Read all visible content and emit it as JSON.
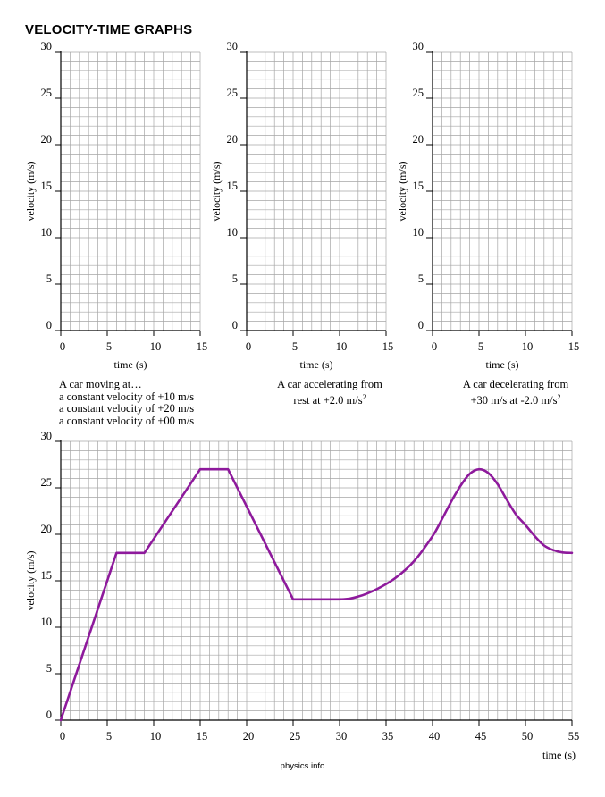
{
  "page_title": "VELOCITY-TIME GRAPHS",
  "footer": "physics.info",
  "captions": {
    "graph1_lines": [
      "A car moving at…",
      "a constant velocity of +10 m/s",
      "a constant velocity of +20 m/s",
      "a constant velocity of +00 m/s"
    ],
    "graph2_lines": [
      "A car  accelerating from",
      "rest at +2.0 m/s"
    ],
    "graph2_sup": "2",
    "graph3_lines": [
      "A car decelerating from",
      "+30 m/s at -2.0 m/s"
    ],
    "graph3_sup": "2"
  },
  "colors": {
    "grid": "#a6a6a6",
    "axis": "#000000",
    "curve": "#8e1a9c"
  },
  "chart_data": [
    {
      "type": "line",
      "xlabel": "time (s)",
      "ylabel": "velocity (m/s)",
      "xlim": [
        0,
        15
      ],
      "ylim": [
        0,
        30
      ],
      "xticks": [
        0,
        5,
        10,
        15
      ],
      "yticks": [
        0,
        5,
        10,
        15,
        20,
        25,
        30
      ],
      "grid": true,
      "series": []
    },
    {
      "type": "line",
      "xlabel": "time (s)",
      "ylabel": "velocity (m/s)",
      "xlim": [
        0,
        15
      ],
      "ylim": [
        0,
        30
      ],
      "xticks": [
        0,
        5,
        10,
        15
      ],
      "yticks": [
        0,
        5,
        10,
        15,
        20,
        25,
        30
      ],
      "grid": true,
      "series": []
    },
    {
      "type": "line",
      "xlabel": "time (s)",
      "ylabel": "velocity (m/s)",
      "xlim": [
        0,
        15
      ],
      "ylim": [
        0,
        30
      ],
      "xticks": [
        0,
        5,
        10,
        15
      ],
      "yticks": [
        0,
        5,
        10,
        15,
        20,
        25,
        30
      ],
      "grid": true,
      "series": []
    },
    {
      "type": "line",
      "xlabel": "time (s)",
      "ylabel": "velocity (m/s)",
      "xlim": [
        0,
        55
      ],
      "ylim": [
        0,
        30
      ],
      "xticks": [
        0,
        5,
        10,
        15,
        20,
        25,
        30,
        35,
        40,
        45,
        50,
        55
      ],
      "yticks": [
        0,
        5,
        10,
        15,
        20,
        25,
        30
      ],
      "grid": true,
      "series": [
        {
          "x": [
            0,
            6,
            9,
            15,
            18,
            25,
            30,
            32,
            34,
            36,
            38,
            40,
            41,
            42,
            43,
            44,
            45,
            46,
            47,
            48,
            49,
            50,
            51,
            52,
            53,
            54,
            55
          ],
          "y": [
            0,
            18,
            18,
            27,
            27,
            13,
            13,
            13.3,
            14.1,
            15.3,
            17.1,
            19.8,
            21.6,
            23.5,
            25.2,
            26.5,
            27,
            26.6,
            25.4,
            23.7,
            22.1,
            21,
            19.8,
            18.8,
            18.3,
            18.05,
            18
          ]
        }
      ]
    }
  ]
}
